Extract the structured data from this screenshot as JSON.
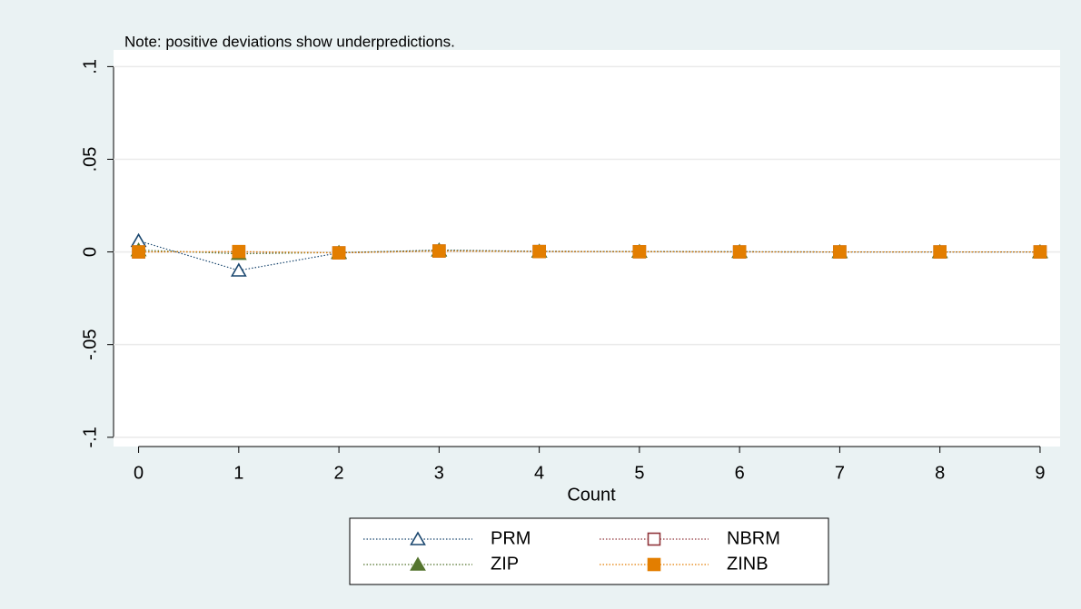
{
  "chart_data": {
    "type": "line",
    "note": "Note: positive deviations show underpredictions.",
    "xlabel": "Count",
    "x": [
      0,
      1,
      2,
      3,
      4,
      5,
      6,
      7,
      8,
      9
    ],
    "xlim": [
      -0.25,
      9.2
    ],
    "xticks": [
      0,
      1,
      2,
      3,
      4,
      5,
      6,
      7,
      8,
      9
    ],
    "ylim": [
      -0.105,
      0.109
    ],
    "yticks": [
      {
        "value": -0.1,
        "label": "-.1"
      },
      {
        "value": -0.05,
        "label": "-.05"
      },
      0,
      {
        "value": 0.05,
        "label": ".05"
      },
      {
        "value": 0.1,
        "label": ".1"
      }
    ],
    "grid": true,
    "series": [
      {
        "name": "PRM",
        "color": "#1a476f",
        "marker": "triangle",
        "filled": false,
        "values": [
          0.006,
          -0.01,
          -0.0005,
          0.001,
          0.0003,
          0.0002,
          0.0001,
          0,
          0,
          0
        ]
      },
      {
        "name": "NBRM",
        "color": "#90353b",
        "marker": "square",
        "filled": false,
        "values": [
          0,
          0,
          -0.0005,
          0.0005,
          0.0002,
          0.0001,
          0,
          0,
          0,
          0
        ]
      },
      {
        "name": "ZIP",
        "color": "#55752f",
        "marker": "triangle",
        "filled": true,
        "values": [
          0.001,
          -0.001,
          -0.0003,
          0.0008,
          0.0003,
          0.0002,
          0.0001,
          0,
          0,
          0
        ]
      },
      {
        "name": "ZINB",
        "color": "#e37e00",
        "marker": "square",
        "filled": true,
        "values": [
          0,
          0.0002,
          -0.0005,
          0.0005,
          0.0002,
          0.0001,
          0,
          0,
          0,
          0
        ]
      }
    ]
  }
}
